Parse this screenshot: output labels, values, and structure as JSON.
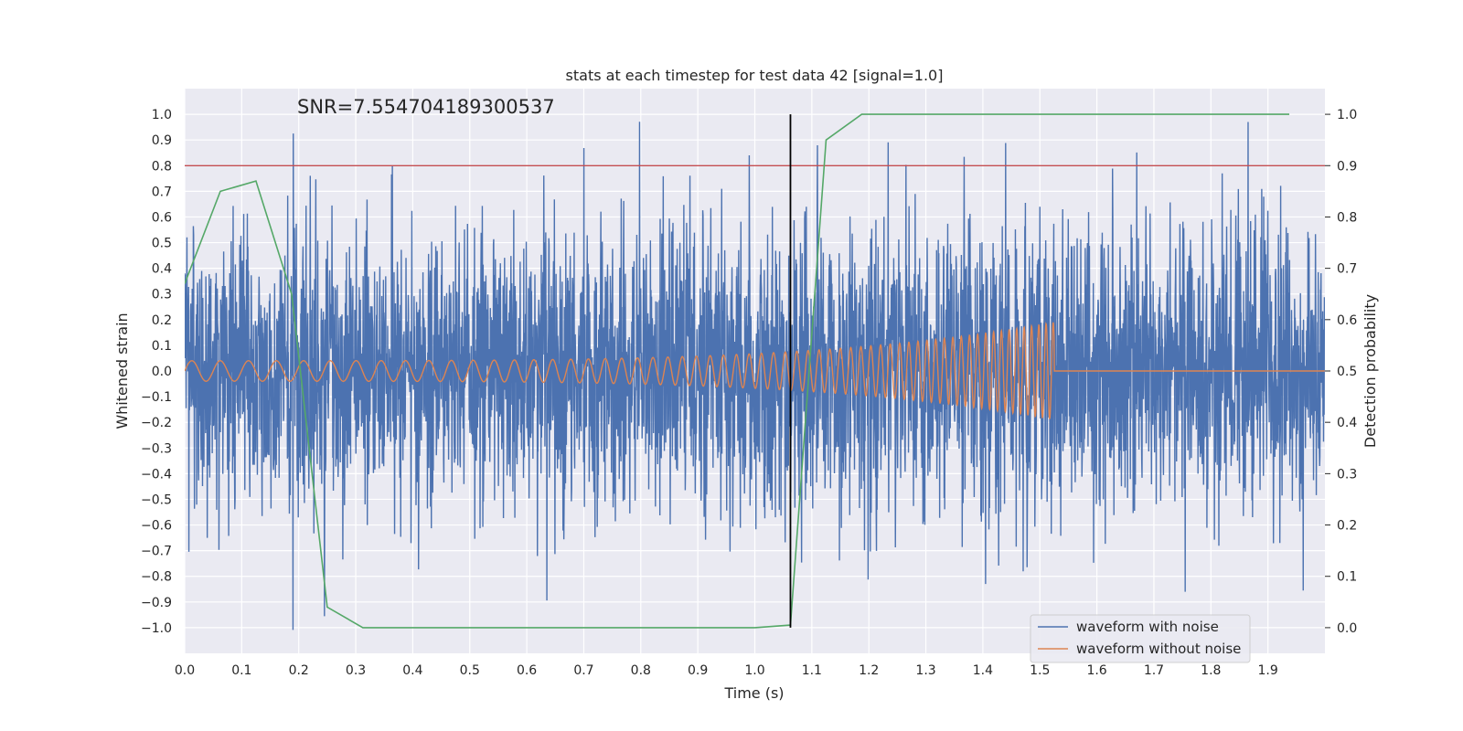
{
  "chart_data": {
    "type": "line",
    "title": "stats at each timestep for test data 42 [signal=1.0]",
    "xlabel": "Time (s)",
    "ylabel": "Whitened strain",
    "y2label": "Detection probability",
    "annotation": "SNR=7.554704189300537",
    "xlim": [
      0.0,
      2.0
    ],
    "ylim": [
      -1.1,
      1.1
    ],
    "y2lim": [
      -0.05,
      1.05
    ],
    "xticks": [
      0.0,
      0.1,
      0.2,
      0.3,
      0.4,
      0.5,
      0.6,
      0.7,
      0.8,
      0.9,
      1.0,
      1.1,
      1.2,
      1.3,
      1.4,
      1.5,
      1.6,
      1.7,
      1.8,
      1.9
    ],
    "xtick_labels": [
      "0.0",
      "0.1",
      "0.2",
      "0.3",
      "0.4",
      "0.5",
      "0.6",
      "0.7",
      "0.8",
      "0.9",
      "1.0",
      "1.1",
      "1.2",
      "1.3",
      "1.4",
      "1.5",
      "1.6",
      "1.7",
      "1.8",
      "1.9"
    ],
    "yticks": [
      1.0,
      0.9,
      0.8,
      0.7,
      0.6,
      0.5,
      0.4,
      0.3,
      0.2,
      0.1,
      0.0,
      -0.1,
      -0.2,
      -0.3,
      -0.4,
      -0.5,
      -0.6,
      -0.7,
      -0.8,
      -0.9,
      -1.0
    ],
    "ytick_labels": [
      "1.0",
      "0.9",
      "0.8",
      "0.7",
      "0.6",
      "0.5",
      "0.4",
      "0.3",
      "0.2",
      "0.1",
      "0.0",
      "−0.1",
      "−0.2",
      "−0.3",
      "−0.4",
      "−0.5",
      "−0.6",
      "−0.7",
      "−0.8",
      "−0.9",
      "−1.0"
    ],
    "y2ticks": [
      1.0,
      0.9,
      0.8,
      0.7,
      0.6,
      0.5,
      0.4,
      0.3,
      0.2,
      0.1,
      0.0
    ],
    "y2tick_labels": [
      "1.0",
      "0.9",
      "0.8",
      "0.7",
      "0.6",
      "0.5",
      "0.4",
      "0.3",
      "0.2",
      "0.1",
      "0.0"
    ],
    "series": [
      {
        "name": "waveform with noise",
        "color": "#4c72b0",
        "sample_rate": 2048,
        "duration": 2.0,
        "amplitude_std": 0.27,
        "spikes": [
          {
            "x": 0.19,
            "y": -0.99
          },
          {
            "x": 0.22,
            "y": 0.76
          },
          {
            "x": 0.23,
            "y": 0.77
          },
          {
            "x": 0.245,
            "y": -0.96
          },
          {
            "x": 0.32,
            "y": 0.69
          },
          {
            "x": 0.41,
            "y": -0.75
          },
          {
            "x": 0.7,
            "y": 0.87
          },
          {
            "x": 0.99,
            "y": 0.8
          },
          {
            "x": 1.11,
            "y": 0.85
          },
          {
            "x": 1.265,
            "y": 0.83
          },
          {
            "x": 1.44,
            "y": 0.98
          },
          {
            "x": 1.755,
            "y": -0.86
          },
          {
            "x": 1.82,
            "y": 0.77
          },
          {
            "x": 1.865,
            "y": 0.97
          },
          {
            "x": 0.06,
            "y": -0.72
          },
          {
            "x": 0.11,
            "y": 0.59
          },
          {
            "x": 1.52,
            "y": -0.62
          },
          {
            "x": 1.54,
            "y": 0.63
          }
        ]
      },
      {
        "name": "waveform without noise",
        "color": "#dd8452",
        "chirp_start": 0.0,
        "chirp_end": 1.525,
        "f_start": 20,
        "f_end": 110,
        "amp_start": 0.04,
        "amp_end": 0.19
      },
      {
        "name": "detection probability",
        "color": "#55a868",
        "axis": "y2",
        "x": [
          0.0,
          0.0625,
          0.125,
          0.1875,
          0.25,
          0.3125,
          0.6875,
          1.0,
          1.0625,
          1.125,
          1.1875,
          1.9375
        ],
        "values": [
          0.67,
          0.85,
          0.87,
          0.65,
          0.04,
          0.0,
          0.0,
          0.0,
          0.005,
          0.95,
          1.0,
          1.0
        ]
      }
    ],
    "threshold": {
      "value": 0.9,
      "axis": "y2",
      "color": "#c44e52"
    },
    "vline": {
      "x": 1.0625,
      "color": "#000000"
    },
    "legend": {
      "placement": "lower-right",
      "entries": [
        "waveform with noise",
        "waveform without noise"
      ]
    },
    "style": {
      "background": "#eaeaf2",
      "grid": true,
      "grid_color": "#ffffff"
    }
  }
}
